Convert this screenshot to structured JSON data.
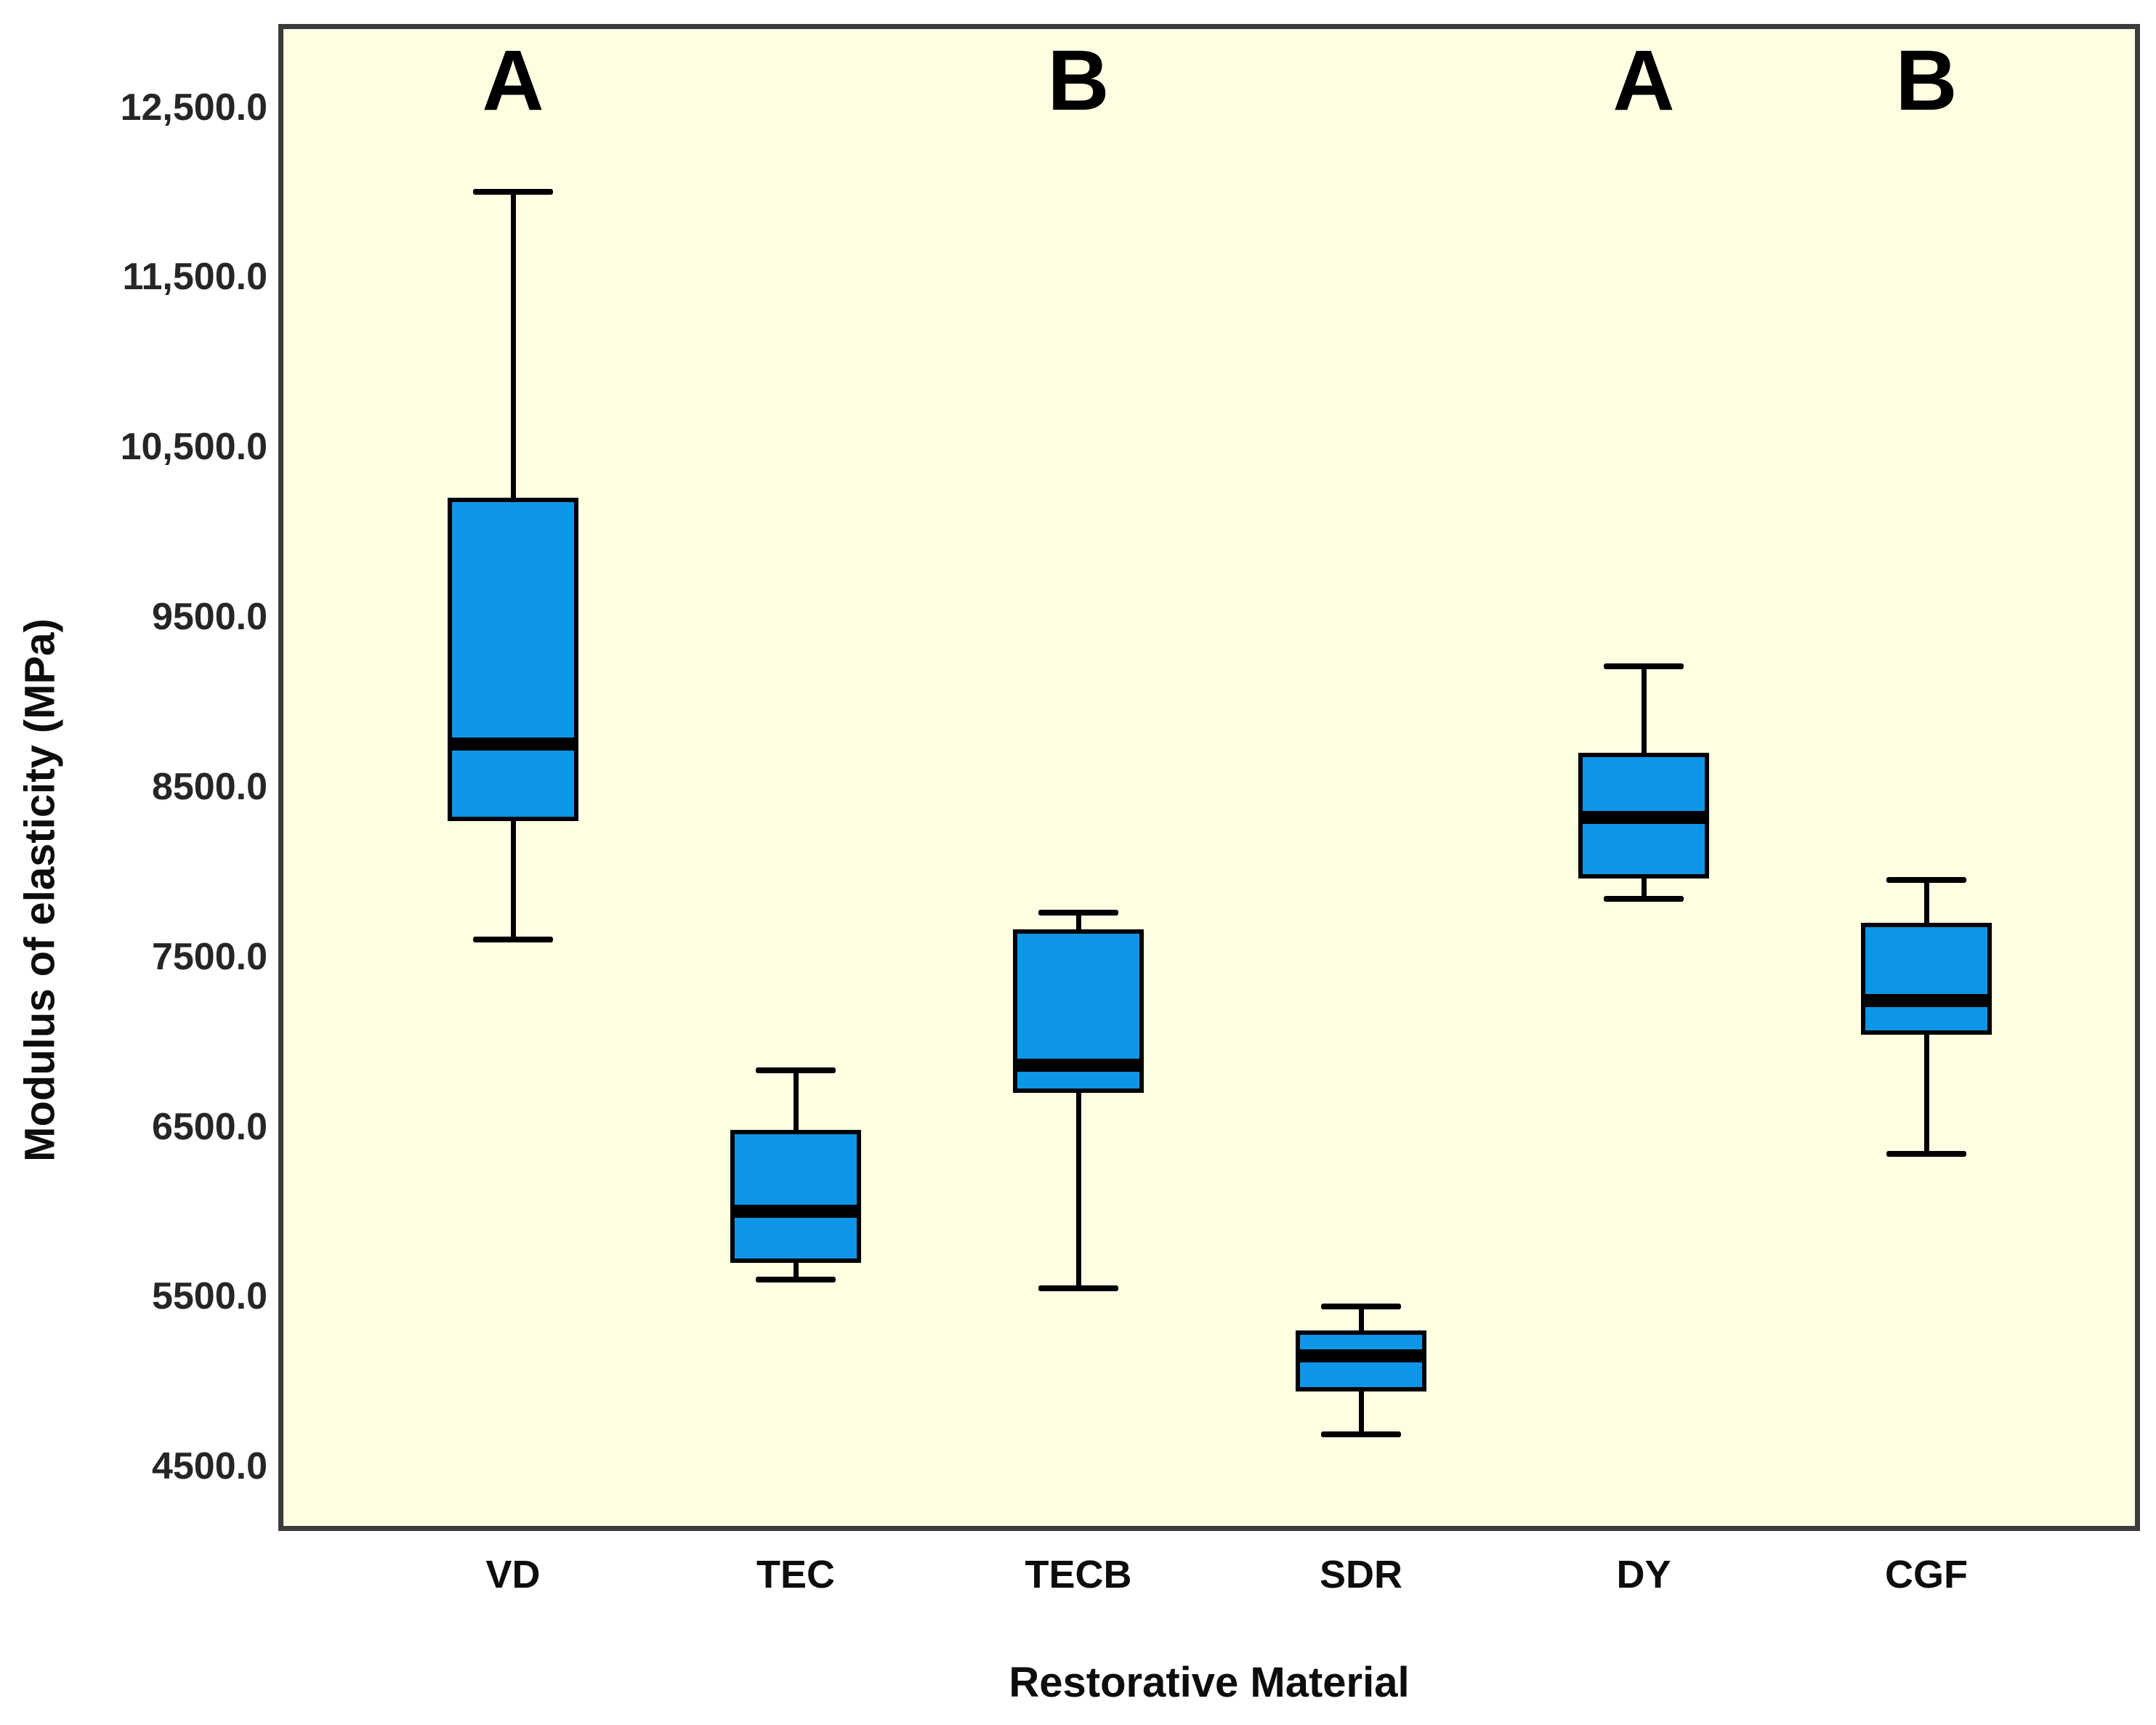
{
  "figure": {
    "background_color": "#ffffff",
    "plot_background_color": "#fffee3",
    "frame_color": "#3c3c3c",
    "box_fill_color": "#0d96e8",
    "box_line_color": "#000000",
    "text_color": "#0d0d0d"
  },
  "chart_data": {
    "type": "boxplot",
    "title": "",
    "xlabel": "Restorative Material",
    "ylabel": "Modulus of elasticity (MPa)",
    "grid": false,
    "legend": false,
    "ylim": [
      4150,
      12960
    ],
    "y_ticks": [
      {
        "label": "12,500.0",
        "value": 12500
      },
      {
        "label": "11,500.0",
        "value": 11500
      },
      {
        "label": "10,500.0",
        "value": 10500
      },
      {
        "label": "9500.0",
        "value": 9500
      },
      {
        "label": "8500.0",
        "value": 8500
      },
      {
        "label": "7500.0",
        "value": 7500
      },
      {
        "label": "6500.0",
        "value": 6500
      },
      {
        "label": "5500.0",
        "value": 5500
      },
      {
        "label": "4500.0",
        "value": 4500
      }
    ],
    "categories": [
      "VD",
      "TEC",
      "TECB",
      "SDR",
      "DY",
      "CGF"
    ],
    "series": [
      {
        "category": "VD",
        "significance_letter": "A",
        "min": 7600,
        "q1": 8300,
        "median": 8750,
        "q3": 10200,
        "max": 12000
      },
      {
        "category": "TEC",
        "significance_letter": "",
        "min": 5600,
        "q1": 5700,
        "median": 6000,
        "q3": 6480,
        "max": 6830
      },
      {
        "category": "TECB",
        "significance_letter": "B",
        "min": 5550,
        "q1": 6700,
        "median": 6860,
        "q3": 7660,
        "max": 7760
      },
      {
        "category": "SDR",
        "significance_letter": "",
        "min": 4690,
        "q1": 4940,
        "median": 5150,
        "q3": 5300,
        "max": 5440
      },
      {
        "category": "DY",
        "significance_letter": "A",
        "min": 7840,
        "q1": 7960,
        "median": 8320,
        "q3": 8700,
        "max": 9210
      },
      {
        "category": "CGF",
        "significance_letter": "B",
        "min": 6340,
        "q1": 7040,
        "median": 7240,
        "q3": 7700,
        "max": 7950
      }
    ]
  }
}
